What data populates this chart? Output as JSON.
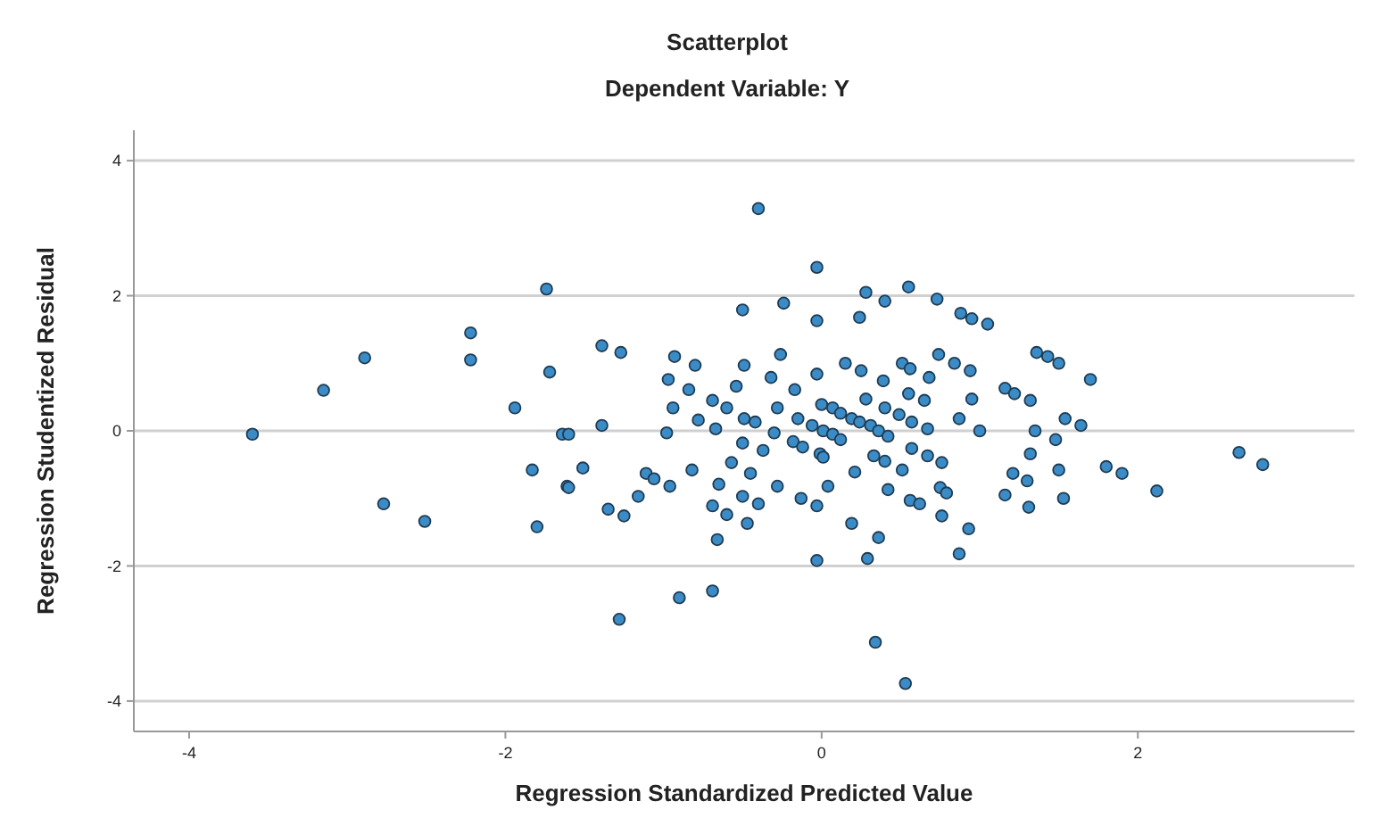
{
  "chart_data": {
    "type": "scatter",
    "title": "Scatterplot",
    "subtitle": "Dependent Variable: Y",
    "xlabel": "Regression Standardized Predicted Value",
    "ylabel": "Regression Studentized Residual",
    "xlim": [
      -4.35,
      3.37
    ],
    "ylim": [
      -4.45,
      4.45
    ],
    "xticks": [
      -4,
      -2,
      0,
      2
    ],
    "yticks": [
      -4,
      -2,
      0,
      2,
      4
    ],
    "grid": "y",
    "marker": "circle",
    "series": [
      {
        "color": "#3b8cc6",
        "x": [
          -3.6,
          -3.15,
          -2.89,
          -2.77,
          -2.51,
          -2.22,
          -2.22,
          -1.94,
          -1.83,
          -1.8,
          -1.74,
          -1.72,
          -1.64,
          -1.61,
          -0.4,
          -0.03,
          -0.5,
          -0.24,
          -0.03,
          -1.39,
          -1.27,
          -0.93,
          -0.8,
          -0.49,
          -0.26,
          -0.97,
          -0.84,
          -0.54,
          -0.32,
          -0.17,
          -0.03,
          -0.94,
          -0.69,
          -0.6,
          -0.78,
          -0.67,
          -0.49,
          -0.42,
          -0.28,
          -0.15,
          0.0,
          -1.6,
          -1.39,
          -0.98,
          -0.5,
          -0.3,
          -0.18,
          -0.12,
          -0.06,
          -1.51,
          -1.6,
          -1.11,
          -1.06,
          -0.82,
          -0.57,
          -0.37,
          -0.45,
          -0.96,
          -0.65,
          -0.28,
          -0.01,
          -1.16,
          -1.35,
          -1.25,
          -0.69,
          -0.6,
          -0.5,
          -0.4,
          -0.13,
          -0.03,
          -0.47,
          -0.66,
          -0.03,
          -0.9,
          -0.69,
          -1.28,
          0.28,
          0.55,
          0.4,
          0.24,
          0.73,
          0.88,
          0.95,
          1.05,
          0.15,
          0.25,
          0.39,
          0.51,
          0.56,
          0.68,
          0.74,
          0.84,
          0.94,
          0.95,
          0.55,
          0.65,
          0.28,
          0.4,
          0.07,
          0.12,
          0.19,
          0.24,
          0.31,
          0.36,
          0.42,
          0.01,
          0.07,
          0.12,
          0.49,
          0.57,
          0.67,
          0.87,
          1.0,
          0.57,
          0.67,
          0.76,
          0.33,
          0.4,
          0.01,
          0.04,
          0.21,
          0.51,
          0.42,
          0.75,
          0.79,
          0.56,
          0.62,
          0.76,
          0.93,
          0.87,
          0.19,
          0.36,
          0.29,
          0.34,
          0.53,
          1.16,
          1.22,
          1.32,
          1.36,
          1.43,
          1.5,
          1.7,
          1.54,
          1.64,
          1.35,
          1.48,
          1.32,
          1.21,
          1.5,
          1.3,
          1.16,
          1.53,
          1.31,
          1.8,
          1.9,
          2.12,
          2.64,
          2.79
        ],
        "values": [
          -0.05,
          0.6,
          1.08,
          -1.08,
          -1.34,
          1.45,
          1.05,
          0.34,
          -0.58,
          -1.42,
          2.1,
          0.87,
          -0.05,
          -0.82,
          3.29,
          2.42,
          1.79,
          1.89,
          1.63,
          1.26,
          1.16,
          1.1,
          0.97,
          0.97,
          1.13,
          0.76,
          0.61,
          0.66,
          0.79,
          0.61,
          0.84,
          0.34,
          0.45,
          0.34,
          0.16,
          0.03,
          0.18,
          0.13,
          0.34,
          0.18,
          0.39,
          -0.05,
          0.08,
          -0.03,
          -0.18,
          -0.03,
          -0.16,
          -0.24,
          0.08,
          -0.55,
          -0.84,
          -0.63,
          -0.71,
          -0.58,
          -0.47,
          -0.29,
          -0.63,
          -0.82,
          -0.79,
          -0.82,
          -0.34,
          -0.97,
          -1.16,
          -1.26,
          -1.11,
          -1.24,
          -0.97,
          -1.08,
          -1.0,
          -1.11,
          -1.37,
          -1.61,
          -1.92,
          -2.47,
          -2.37,
          -2.79,
          2.05,
          2.13,
          1.92,
          1.68,
          1.95,
          1.74,
          1.66,
          1.58,
          1.0,
          0.89,
          0.74,
          1.0,
          0.92,
          0.79,
          1.13,
          1.0,
          0.89,
          0.47,
          0.55,
          0.45,
          0.47,
          0.34,
          0.34,
          0.26,
          0.18,
          0.13,
          0.08,
          0.0,
          -0.08,
          0.0,
          -0.05,
          -0.13,
          0.24,
          0.13,
          0.03,
          0.18,
          0.0,
          -0.26,
          -0.37,
          -0.47,
          -0.37,
          -0.45,
          -0.39,
          -0.82,
          -0.61,
          -0.58,
          -0.87,
          -0.84,
          -0.92,
          -1.03,
          -1.08,
          -1.26,
          -1.45,
          -1.82,
          -1.37,
          -1.58,
          -1.89,
          -3.13,
          -3.74,
          0.63,
          0.55,
          0.45,
          1.16,
          1.1,
          1.0,
          0.76,
          0.18,
          0.08,
          0.0,
          -0.13,
          -0.34,
          -0.63,
          -0.58,
          -0.74,
          -0.95,
          -1.0,
          -1.13,
          -0.53,
          -0.63,
          -0.89,
          -0.32,
          -0.5
        ]
      }
    ]
  }
}
